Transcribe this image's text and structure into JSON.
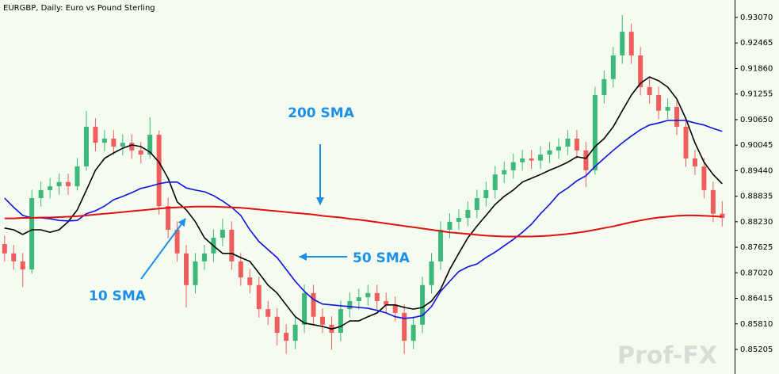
{
  "chart_data": {
    "type": "candlestick",
    "title": "EURGBP, Daily:  Euro vs Pound Sterling",
    "watermark": "Prof-FX",
    "up_color": "#3cb878",
    "down_color": "#ef5d5d",
    "open": [
      0.877,
      0.8748,
      0.8729,
      0.871,
      0.8879,
      0.8898,
      0.8907,
      0.8917,
      0.8907,
      0.8954,
      0.9048,
      0.901,
      0.902,
      0.9001,
      0.901,
      0.8992,
      0.8982,
      0.9029,
      0.886,
      0.8804,
      0.8748,
      0.8673,
      0.8729,
      0.8748,
      0.8785,
      0.8804,
      0.8729,
      0.8691,
      0.8673,
      0.8616,
      0.8598,
      0.856,
      0.8541,
      0.8579,
      0.8654,
      0.8598,
      0.8579,
      0.856,
      0.8616,
      0.8635,
      0.8644,
      0.8654,
      0.8635,
      0.8626,
      0.8607,
      0.8541,
      0.8579,
      0.8673,
      0.8729,
      0.8804,
      0.8823,
      0.8832,
      0.8851,
      0.8879,
      0.8898,
      0.8935,
      0.8945,
      0.8964,
      0.8973,
      0.8968,
      0.8982,
      0.8992,
      0.9001,
      0.902,
      0.8992,
      0.8945,
      0.9123,
      0.9161,
      0.9217,
      0.9273,
      0.9217,
      0.9142,
      0.9123,
      0.9086,
      0.9095,
      0.9048,
      0.8973,
      0.8954,
      0.8898,
      0.8842
    ],
    "high": [
      0.879,
      0.8768,
      0.8749,
      0.8899,
      0.8918,
      0.8927,
      0.8937,
      0.8937,
      0.8974,
      0.9085,
      0.9068,
      0.904,
      0.904,
      0.903,
      0.903,
      0.9012,
      0.907,
      0.9039,
      0.888,
      0.8824,
      0.8768,
      0.8749,
      0.8768,
      0.8805,
      0.883,
      0.8824,
      0.8749,
      0.8711,
      0.8693,
      0.8636,
      0.8618,
      0.858,
      0.8599,
      0.8674,
      0.8674,
      0.8618,
      0.8599,
      0.8636,
      0.8655,
      0.8664,
      0.8674,
      0.8674,
      0.8655,
      0.8646,
      0.8627,
      0.8599,
      0.8693,
      0.8749,
      0.8824,
      0.8843,
      0.8852,
      0.8871,
      0.8899,
      0.8918,
      0.8955,
      0.8965,
      0.8984,
      0.8993,
      0.8993,
      0.9002,
      0.9012,
      0.9021,
      0.904,
      0.904,
      0.9012,
      0.9143,
      0.9181,
      0.9237,
      0.9313,
      0.9293,
      0.9237,
      0.9162,
      0.9143,
      0.9115,
      0.9115,
      0.9068,
      0.8993,
      0.8974,
      0.8918,
      0.8872
    ],
    "low": [
      0.8728,
      0.8709,
      0.8668,
      0.87,
      0.8859,
      0.8878,
      0.8887,
      0.8887,
      0.8897,
      0.8944,
      0.899,
      0.899,
      0.8981,
      0.8981,
      0.8972,
      0.8962,
      0.8972,
      0.884,
      0.8784,
      0.8728,
      0.862,
      0.8653,
      0.8709,
      0.8728,
      0.8765,
      0.8709,
      0.8671,
      0.8653,
      0.8596,
      0.8578,
      0.853,
      0.851,
      0.8521,
      0.8559,
      0.8578,
      0.8559,
      0.852,
      0.854,
      0.8596,
      0.8615,
      0.8624,
      0.8615,
      0.8606,
      0.8587,
      0.851,
      0.8521,
      0.8559,
      0.8653,
      0.8709,
      0.8784,
      0.8803,
      0.8812,
      0.8831,
      0.8859,
      0.8878,
      0.8915,
      0.8925,
      0.8944,
      0.8948,
      0.8948,
      0.8962,
      0.8972,
      0.8981,
      0.8972,
      0.8905,
      0.8935,
      0.9103,
      0.9141,
      0.9197,
      0.9197,
      0.9122,
      0.9103,
      0.9066,
      0.9066,
      0.9028,
      0.8953,
      0.8934,
      0.8878,
      0.8822,
      0.8812
    ],
    "close": [
      0.8748,
      0.8729,
      0.871,
      0.8879,
      0.8898,
      0.8907,
      0.8917,
      0.8907,
      0.8954,
      0.9048,
      0.901,
      0.902,
      0.9001,
      0.901,
      0.8992,
      0.8982,
      0.9029,
      0.886,
      0.8804,
      0.8748,
      0.8673,
      0.8729,
      0.8748,
      0.8785,
      0.8804,
      0.8729,
      0.8691,
      0.8673,
      0.8616,
      0.8598,
      0.856,
      0.8541,
      0.8579,
      0.8654,
      0.8598,
      0.8579,
      0.856,
      0.8616,
      0.8635,
      0.8644,
      0.8654,
      0.8635,
      0.8626,
      0.8607,
      0.8541,
      0.8579,
      0.8673,
      0.8729,
      0.8804,
      0.8823,
      0.8832,
      0.8851,
      0.8879,
      0.8898,
      0.8935,
      0.8945,
      0.8964,
      0.8973,
      0.8968,
      0.8982,
      0.8992,
      0.9001,
      0.902,
      0.8992,
      0.8945,
      0.9123,
      0.9161,
      0.9217,
      0.9273,
      0.9217,
      0.9142,
      0.9123,
      0.9086,
      0.9095,
      0.9048,
      0.8973,
      0.8954,
      0.8898,
      0.8842,
      0.8832
    ],
    "series": [
      {
        "name": "10 SMA",
        "color": "#000000",
        "values": [
          0.8808,
          0.8804,
          0.8793,
          0.8804,
          0.8804,
          0.8798,
          0.8804,
          0.8823,
          0.8851,
          0.8898,
          0.8945,
          0.8973,
          0.8986,
          0.8997,
          0.9005,
          0.9001,
          0.8988,
          0.8964,
          0.8926,
          0.887,
          0.8851,
          0.8823,
          0.8785,
          0.8766,
          0.8748,
          0.8748,
          0.8738,
          0.8729,
          0.8701,
          0.8673,
          0.8654,
          0.8626,
          0.8598,
          0.8583,
          0.8579,
          0.8575,
          0.8569,
          0.8575,
          0.8588,
          0.8588,
          0.8598,
          0.8607,
          0.8626,
          0.8626,
          0.862,
          0.8616,
          0.862,
          0.8635,
          0.8663,
          0.871,
          0.8748,
          0.8785,
          0.8813,
          0.8838,
          0.8864,
          0.8883,
          0.8898,
          0.8917,
          0.8926,
          0.8935,
          0.8945,
          0.8954,
          0.8964,
          0.8977,
          0.8973,
          0.9001,
          0.902,
          0.9048,
          0.9086,
          0.9123,
          0.9151,
          0.9166,
          0.9157,
          0.9142,
          0.9114,
          0.9067,
          0.901,
          0.8964,
          0.8935,
          0.8913
        ]
      },
      {
        "name": "50 SMA",
        "color": "#1010e0",
        "values": [
          0.8879,
          0.8857,
          0.8838,
          0.8832,
          0.8832,
          0.883,
          0.8826,
          0.8825,
          0.8826,
          0.8842,
          0.8849,
          0.886,
          0.8875,
          0.8883,
          0.8892,
          0.8902,
          0.8907,
          0.8913,
          0.8917,
          0.8917,
          0.8903,
          0.8898,
          0.8894,
          0.8885,
          0.8872,
          0.8857,
          0.8838,
          0.8804,
          0.8776,
          0.8757,
          0.8738,
          0.871,
          0.8682,
          0.8658,
          0.8639,
          0.8628,
          0.8626,
          0.8624,
          0.8622,
          0.862,
          0.8618,
          0.8613,
          0.8607,
          0.8598,
          0.8594,
          0.8596,
          0.8601,
          0.8622,
          0.8658,
          0.8682,
          0.8705,
          0.8716,
          0.8723,
          0.8738,
          0.8751,
          0.8766,
          0.8781,
          0.8798,
          0.8817,
          0.8842,
          0.8864,
          0.8889,
          0.8903,
          0.892,
          0.8932,
          0.8954,
          0.8973,
          0.8992,
          0.901,
          0.9026,
          0.9041,
          0.9052,
          0.9057,
          0.9063,
          0.9063,
          0.9063,
          0.9057,
          0.9052,
          0.9044,
          0.9037
        ]
      },
      {
        "name": "200 SMA",
        "color": "#e01010",
        "values": [
          0.8831,
          0.8831,
          0.8832,
          0.8832,
          0.8833,
          0.8833,
          0.8834,
          0.8835,
          0.8836,
          0.8838,
          0.884,
          0.8842,
          0.8844,
          0.8846,
          0.8848,
          0.885,
          0.8852,
          0.8854,
          0.8856,
          0.8857,
          0.8858,
          0.8859,
          0.8859,
          0.8859,
          0.8858,
          0.8857,
          0.8856,
          0.8854,
          0.8852,
          0.885,
          0.8848,
          0.8846,
          0.8844,
          0.8842,
          0.884,
          0.8837,
          0.8835,
          0.8833,
          0.883,
          0.8828,
          0.8825,
          0.8822,
          0.8819,
          0.8816,
          0.8813,
          0.881,
          0.8807,
          0.8804,
          0.8801,
          0.8798,
          0.8796,
          0.8794,
          0.8792,
          0.879,
          0.8789,
          0.8788,
          0.8788,
          0.8788,
          0.8788,
          0.8789,
          0.879,
          0.8792,
          0.8794,
          0.8797,
          0.88,
          0.8804,
          0.8808,
          0.8812,
          0.8817,
          0.8822,
          0.8826,
          0.883,
          0.8833,
          0.8835,
          0.8837,
          0.8838,
          0.8838,
          0.8837,
          0.8836,
          0.8835
        ]
      }
    ],
    "annotation_color": "#1e8fe8",
    "ylim": [
      0.84623,
      0.93483
    ],
    "yticks": [
      {
        "value": 0.9307,
        "label": "0.93070"
      },
      {
        "value": 0.92465,
        "label": "0.92465"
      },
      {
        "value": 0.9186,
        "label": "0.91860"
      },
      {
        "value": 0.91255,
        "label": "0.91255"
      },
      {
        "value": 0.9065,
        "label": "0.90650"
      },
      {
        "value": 0.90045,
        "label": "0.90045"
      },
      {
        "value": 0.8944,
        "label": "0.89440"
      },
      {
        "value": 0.88835,
        "label": "0.88835"
      },
      {
        "value": 0.8823,
        "label": "0.88230"
      },
      {
        "value": 0.87625,
        "label": "0.87625"
      },
      {
        "value": 0.8702,
        "label": "0.87020"
      },
      {
        "value": 0.86415,
        "label": "0.86415"
      },
      {
        "value": 0.8581,
        "label": "0.85810"
      },
      {
        "value": 0.85205,
        "label": "0.85205"
      }
    ]
  }
}
